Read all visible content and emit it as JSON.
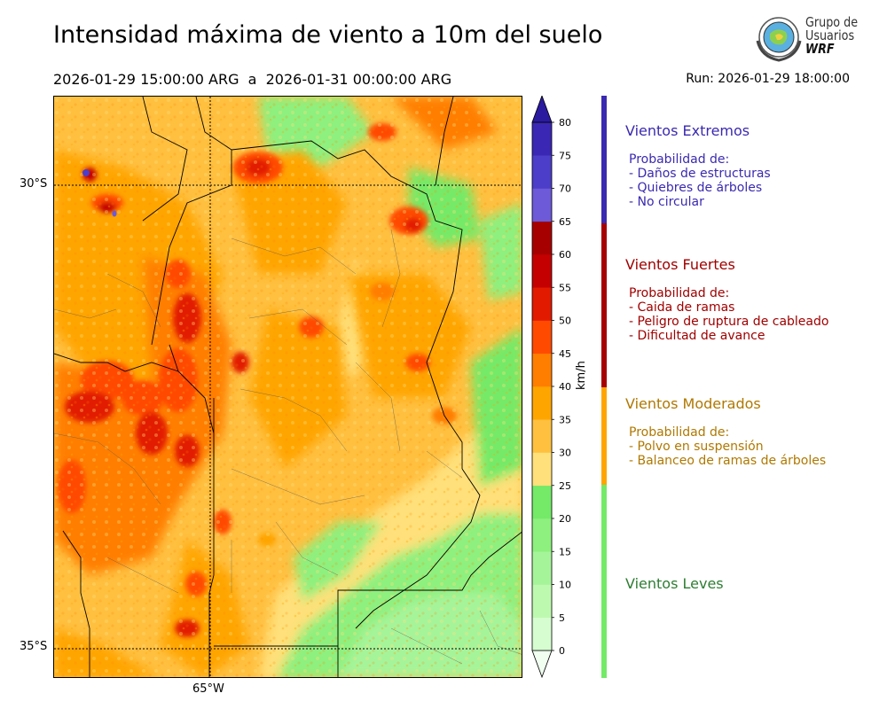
{
  "title": "Intensidad máxima de viento a 10m del suelo",
  "subtitle": "2026-01-29 15:00:00 ARG  a  2026-01-31 00:00:00 ARG",
  "run": "Run: 2026-01-29 18:00:00",
  "logo": {
    "line1": "Grupo de",
    "line2": "Usuarios",
    "line3": "WRF"
  },
  "map": {
    "lat_labels": [
      "30°S",
      "35°S"
    ],
    "lon_labels": [
      "65°W"
    ]
  },
  "colorbar": {
    "unit": "km/h",
    "ticks": [
      "0",
      "5",
      "10",
      "15",
      "20",
      "25",
      "30",
      "35",
      "40",
      "45",
      "50",
      "55",
      "60",
      "65",
      "70",
      "75",
      "80"
    ],
    "colors": [
      "#f0fff0",
      "#d6fdd0",
      "#bef9b0",
      "#a6f49a",
      "#8ef07e",
      "#74ea68",
      "#ffe07a",
      "#ffc040",
      "#ffa500",
      "#ff7e00",
      "#ff4a00",
      "#e21a00",
      "#c40000",
      "#a60000",
      "#6c5ad8",
      "#4c3ec8",
      "#3a28b4",
      "#2a1aa0"
    ]
  },
  "categories": [
    {
      "title": "Vientos Extremos",
      "color": "#3a2ab0",
      "bar_color": "#3a2ab0",
      "desc": [
        "Probabilidad de:",
        "- Daños de estructuras",
        "- Quiebres de árboles",
        "- No circular"
      ]
    },
    {
      "title": "Vientos Fuertes",
      "color": "#a00000",
      "bar_color": "#a60000",
      "desc": [
        "Probabilidad de:",
        "- Caida de ramas",
        "- Peligro de ruptura de cableado",
        "- Dificultad de avance"
      ]
    },
    {
      "title": "Vientos Moderados",
      "color": "#b07800",
      "bar_color": "#ffa500",
      "desc": [
        "Probabilidad de:",
        "- Polvo en suspensión",
        "- Balanceo de ramas de árboles"
      ]
    },
    {
      "title": "Vientos Leves",
      "color": "#2e7d32",
      "bar_color": "#74ea68",
      "desc": []
    }
  ]
}
